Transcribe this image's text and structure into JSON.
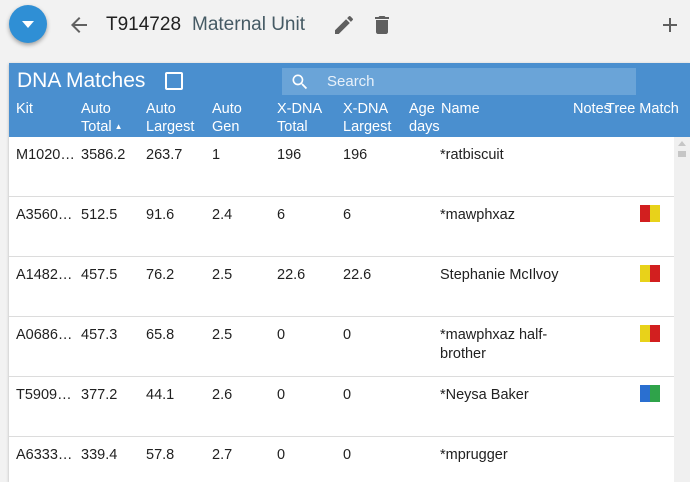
{
  "topbar": {
    "kit_id": "T914728",
    "unit_name": "Maternal Unit"
  },
  "panel": {
    "title": "DNA Matches",
    "search_placeholder": "Search",
    "columns": {
      "kit": "Kit",
      "auto_total": [
        "Auto",
        "Total"
      ],
      "auto_largest": [
        "Auto",
        "Largest"
      ],
      "auto_gen": [
        "Auto",
        "Gen"
      ],
      "xdna_total": [
        "X-DNA",
        "Total"
      ],
      "xdna_largest": [
        "X-DNA",
        "Largest"
      ],
      "age": [
        "Age",
        "days"
      ],
      "name": "Name",
      "notes": "Notes",
      "tree_match": "Tree Match"
    },
    "rows": [
      {
        "kit": "M1020…",
        "auto_total": "3586.2",
        "auto_largest": "263.7",
        "auto_gen": "1",
        "xdna_total": "196",
        "xdna_largest": "196",
        "name": "*ratbiscuit",
        "tree": []
      },
      {
        "kit": "A3560…",
        "auto_total": "512.5",
        "auto_largest": "91.6",
        "auto_gen": "2.4",
        "xdna_total": "6",
        "xdna_largest": "6",
        "name": "*mawphxaz",
        "tree": [
          "#d21f1f",
          "#e8d21a"
        ]
      },
      {
        "kit": "A1482…",
        "auto_total": "457.5",
        "auto_largest": "76.2",
        "auto_gen": "2.5",
        "xdna_total": "22.6",
        "xdna_largest": "22.6",
        "name": "Stephanie McIlvoy",
        "tree": [
          "#e8d21a",
          "#d21f1f"
        ]
      },
      {
        "kit": "A0686…",
        "auto_total": "457.3",
        "auto_largest": "65.8",
        "auto_gen": "2.5",
        "xdna_total": "0",
        "xdna_largest": "0",
        "name": "*mawphxaz half-brother",
        "tree": [
          "#e8d21a",
          "#d21f1f"
        ]
      },
      {
        "kit": "T5909…",
        "auto_total": "377.2",
        "auto_largest": "44.1",
        "auto_gen": "2.6",
        "xdna_total": "0",
        "xdna_largest": "0",
        "name": "*Neysa Baker",
        "tree": [
          "#2a6fd0",
          "#2fa34a"
        ]
      },
      {
        "kit": "A6333…",
        "auto_total": "339.4",
        "auto_largest": "57.8",
        "auto_gen": "2.7",
        "xdna_total": "0",
        "xdna_largest": "0",
        "name": "*mprugger",
        "tree": []
      }
    ]
  },
  "icons": {
    "fab": "chevron-down-icon",
    "back": "arrow-back-icon",
    "edit": "pencil-icon",
    "delete": "trash-icon",
    "add": "plus-icon",
    "search": "search-icon",
    "sort": "sort-up-icon"
  },
  "colors": {
    "accent": "#4a8fcf",
    "fab": "#2f8fd5",
    "unit_name": "#455a64"
  }
}
